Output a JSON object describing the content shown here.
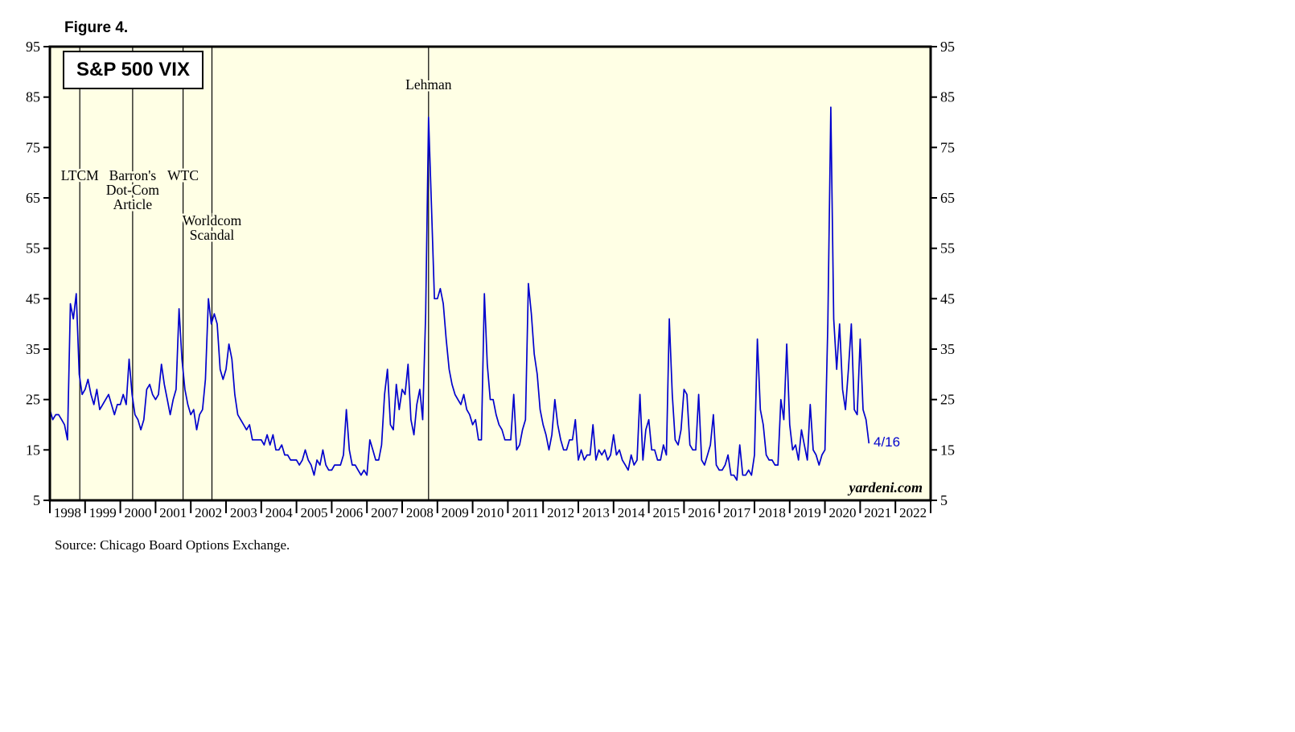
{
  "figure_label": "Figure 4.",
  "source_note": "Source: Chicago Board Options Exchange.",
  "chart_data": {
    "type": "line",
    "title": "S&P 500 VIX",
    "watermark": "yardeni.com",
    "end_label": "4/16",
    "line_color": "#0000CD",
    "plot_bg": "#FFFFE5",
    "frame_color": "#000000",
    "ylim": [
      5,
      95
    ],
    "yticks": [
      5,
      15,
      25,
      35,
      45,
      55,
      65,
      75,
      85,
      95
    ],
    "xlim": [
      1998,
      2023
    ],
    "x_tick_labels": [
      1998,
      1999,
      2000,
      2001,
      2002,
      2003,
      2004,
      2005,
      2006,
      2007,
      2008,
      2009,
      2010,
      2011,
      2012,
      2013,
      2014,
      2015,
      2016,
      2017,
      2018,
      2019,
      2020,
      2021,
      2022
    ],
    "x_start": 1998.0,
    "x_step": 0.0833333,
    "x_unit": "year (monthly VIX values, Jan 1998 - Apr 2021)",
    "values": [
      23,
      21,
      22,
      22,
      21,
      20,
      17,
      44,
      41,
      46,
      30,
      26,
      27,
      29,
      26,
      24,
      27,
      23,
      24,
      25,
      26,
      24,
      22,
      24,
      24,
      26,
      24,
      33,
      26,
      22,
      21,
      19,
      21,
      27,
      28,
      26,
      25,
      26,
      32,
      28,
      25,
      22,
      25,
      27,
      43,
      33,
      27,
      24,
      22,
      23,
      19,
      22,
      23,
      29,
      45,
      40,
      42,
      40,
      31,
      29,
      31,
      36,
      33,
      26,
      22,
      21,
      20,
      19,
      20,
      17,
      17,
      17,
      17,
      16,
      18,
      16,
      18,
      15,
      15,
      16,
      14,
      14,
      13,
      13,
      13,
      12,
      13,
      15,
      13,
      12,
      10,
      13,
      12,
      15,
      12,
      11,
      11,
      12,
      12,
      12,
      14,
      23,
      15,
      12,
      12,
      11,
      10,
      11,
      10,
      17,
      15,
      13,
      13,
      16,
      26,
      31,
      20,
      19,
      28,
      23,
      27,
      26,
      32,
      21,
      18,
      24,
      27,
      21,
      42,
      81,
      63,
      45,
      45,
      47,
      44,
      37,
      31,
      28,
      26,
      25,
      24,
      26,
      23,
      22,
      20,
      21,
      17,
      17,
      46,
      32,
      25,
      25,
      22,
      20,
      19,
      17,
      17,
      17,
      26,
      15,
      16,
      19,
      21,
      48,
      42,
      34,
      30,
      23,
      20,
      18,
      15,
      18,
      25,
      20,
      17,
      15,
      15,
      17,
      17,
      21,
      13,
      15,
      13,
      14,
      14,
      20,
      13,
      15,
      14,
      15,
      13,
      14,
      18,
      14,
      15,
      13,
      12,
      11,
      14,
      12,
      13,
      26,
      13,
      19,
      21,
      15,
      15,
      13,
      13,
      16,
      14,
      41,
      26,
      17,
      16,
      19,
      27,
      26,
      16,
      15,
      15,
      26,
      13,
      12,
      14,
      16,
      22,
      12,
      11,
      11,
      12,
      14,
      10,
      10,
      9,
      16,
      10,
      10,
      11,
      10,
      14,
      37,
      23,
      20,
      14,
      13,
      13,
      12,
      12,
      25,
      21,
      36,
      20,
      15,
      16,
      13,
      19,
      16,
      13,
      24,
      15,
      14,
      12,
      14,
      15,
      40,
      83,
      41,
      31,
      40,
      27,
      23,
      31,
      40,
      23,
      22,
      37,
      23,
      21,
      16.3
    ],
    "annotations": [
      {
        "id": "ltcm",
        "x": 1998.85,
        "y": 69.5,
        "lines": [
          "LTCM"
        ]
      },
      {
        "id": "barrons",
        "x": 2000.35,
        "y": 69.5,
        "lines": [
          "Barron's",
          "Dot-Com",
          "Article"
        ]
      },
      {
        "id": "wtc",
        "x": 2001.78,
        "y": 69.5,
        "lines": [
          "WTC"
        ]
      },
      {
        "id": "worldcom",
        "x": 2002.6,
        "y": 60.5,
        "lines": [
          "Worldcom",
          "Scandal"
        ]
      },
      {
        "id": "lehman",
        "x": 2008.75,
        "y": 87.5,
        "lines": [
          "Lehman"
        ]
      }
    ]
  }
}
